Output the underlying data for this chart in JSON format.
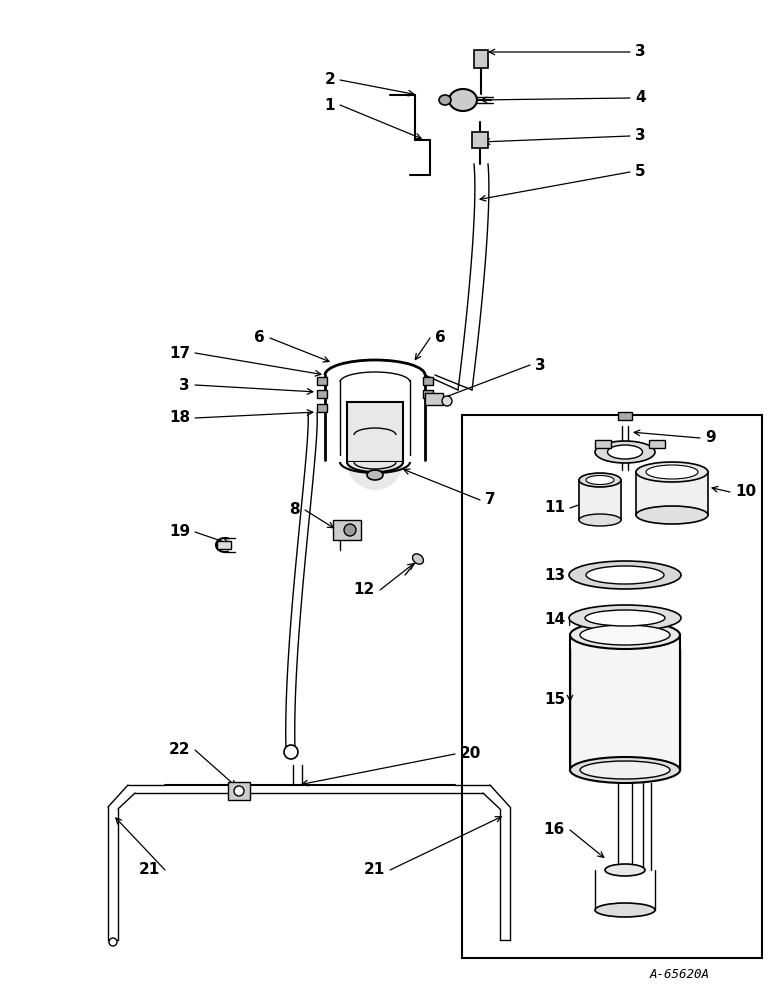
{
  "bg_color": "#ffffff",
  "line_color": "#000000",
  "fig_width": 7.72,
  "fig_height": 10.0,
  "watermark": "A-65620A",
  "lw_thin": 1.0,
  "lw_med": 1.5,
  "lw_thick": 2.0
}
